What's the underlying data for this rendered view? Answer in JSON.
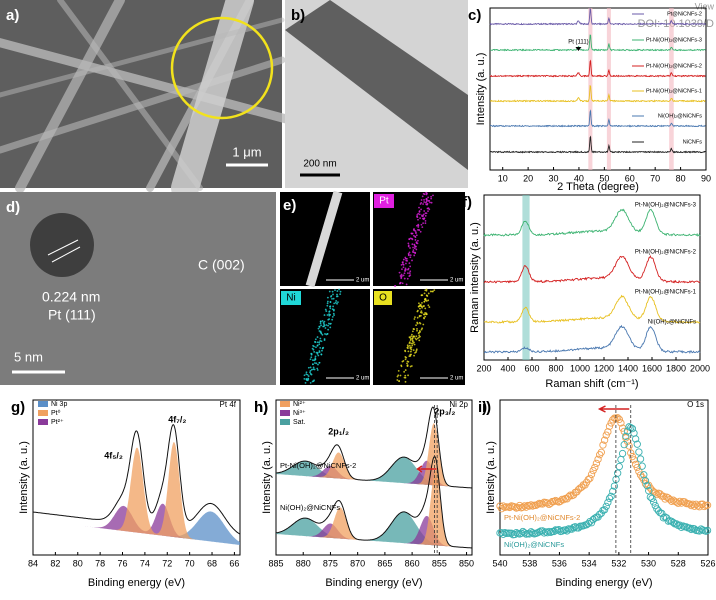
{
  "watermark": [
    "View",
    "DOI: 10.1039/D"
  ],
  "panels": {
    "a": {
      "label": "a)",
      "scale_bar": "1 μm"
    },
    "b": {
      "label": "b)",
      "scale_bar": "200 nm"
    },
    "c": {
      "label": "c)",
      "x_label": "2 Theta (degree)",
      "y_label": "Intensity (a. u.)",
      "xlim": [
        5,
        90
      ],
      "xticks": [
        10,
        20,
        30,
        40,
        50,
        60,
        70,
        80,
        90
      ],
      "legend": [
        "Pt@NiCNFs-2",
        "Pt-Ni(OH)₂@NiCNFs-3",
        "Pt-Ni(OH)₂@NiCNFs-2",
        "Pt-Ni(OH)₂@NiCNFs-1",
        "Ni(OH)₂@NiCNFs",
        "NiCNFs"
      ],
      "annotation": "Pt (111)"
    },
    "d": {
      "label": "d)",
      "annotations": [
        "0.224 nm",
        "Pt (111)",
        "C (002)"
      ],
      "scale_bar": "5 nm"
    },
    "e": {
      "label": "e)",
      "maps": [
        "Pt",
        "Ni",
        "O"
      ],
      "scale_bars": [
        "2 um",
        "2 um",
        "2 um",
        "2 um"
      ]
    },
    "f": {
      "label": "f)",
      "x_label": "Raman shift (cm⁻¹)",
      "y_label": "Raman intensity (a. u.)",
      "xlim": [
        200,
        2000
      ],
      "xticks": [
        200,
        400,
        600,
        800,
        1000,
        1200,
        1400,
        1600,
        1800,
        2000
      ],
      "legend": [
        "Pt-Ni(OH)₂@NiCNFs-3",
        "Pt-Ni(OH)₂@NiCNFs-2",
        "Pt-Ni(OH)₂@NiCNFs-1",
        "Ni(OH)₂@NiCNFs"
      ]
    },
    "g": {
      "label": "g)",
      "x_label": "Binding energy (eV)",
      "y_label": "Intensity (a. u.)",
      "title": "Pt 4f",
      "xlim": [
        84,
        65.5
      ],
      "xticks": [
        84,
        82,
        80,
        78,
        76,
        74,
        72,
        70,
        68,
        66
      ],
      "legend": [
        "Ni 3p",
        "Pt⁰",
        "Pt²⁺"
      ],
      "peaks": [
        "4f₅/₂",
        "4f₇/₂"
      ]
    },
    "h": {
      "label": "h)",
      "x_label": "Binding energy (eV)",
      "y_label": "Intensity (a. u.)",
      "title": "Ni 2p",
      "xlim": [
        885,
        849
      ],
      "xticks": [
        885,
        880,
        875,
        870,
        865,
        860,
        855,
        850
      ],
      "legend": [
        "Ni²⁺",
        "Ni³⁺",
        "Sat."
      ],
      "peaks": [
        "2p₁/₂",
        "2p₃/₂"
      ],
      "samples": [
        "Pt-Ni(OH)₂@NiCNFs-2",
        "Ni(OH)₂@NiCNFs"
      ]
    },
    "i": {
      "label": "i)",
      "x_label": "Binding energy (eV)",
      "y_label": "Intensity (a. u.)",
      "title": "O 1s",
      "xlim": [
        540,
        526
      ],
      "xticks": [
        540,
        538,
        536,
        534,
        532,
        530,
        528,
        526
      ],
      "samples": [
        "Pt-Ni(OH)₂@NiCNFs-2",
        "Ni(OH)₂@NiCNFs"
      ]
    }
  }
}
